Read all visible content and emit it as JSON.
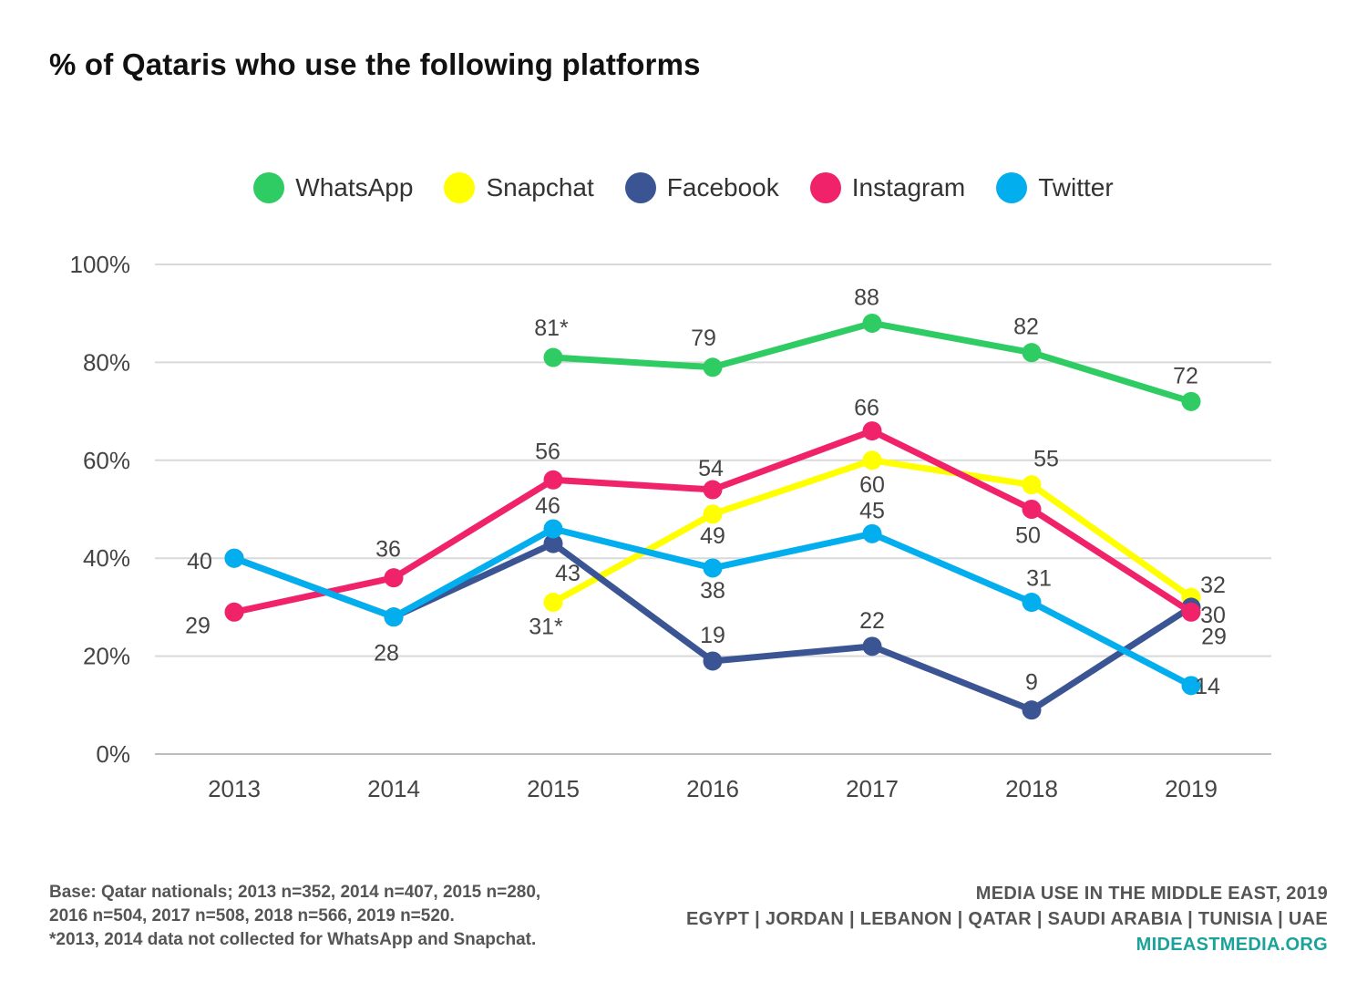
{
  "title": "% of Qataris who use the following platforms",
  "chart_data": {
    "type": "line",
    "title": "% of Qataris who use the following platforms",
    "x": [
      "2013",
      "2014",
      "2015",
      "2016",
      "2017",
      "2018",
      "2019"
    ],
    "ylim": [
      0,
      100
    ],
    "yticks": [
      0,
      20,
      40,
      60,
      80,
      100
    ],
    "ytick_labels": [
      "0%",
      "20%",
      "40%",
      "60%",
      "80%",
      "100%"
    ],
    "grid": true,
    "legend_position": "top",
    "series": [
      {
        "name": "WhatsApp",
        "color": "#2ecc63",
        "values": [
          null,
          null,
          81,
          79,
          88,
          82,
          72
        ],
        "labels": [
          null,
          null,
          "81*",
          "79",
          "88",
          "82",
          "72"
        ]
      },
      {
        "name": "Snapchat",
        "color": "#ffff00",
        "values": [
          null,
          null,
          31,
          49,
          60,
          55,
          32
        ],
        "labels": [
          null,
          null,
          "31*",
          "49",
          "60",
          "55",
          "32"
        ]
      },
      {
        "name": "Facebook",
        "color": "#3b5494",
        "values": [
          40,
          28,
          43,
          19,
          22,
          9,
          30
        ],
        "labels": [
          "40",
          "28",
          "43",
          "19",
          "22",
          "9",
          "30"
        ]
      },
      {
        "name": "Instagram",
        "color": "#f0226a",
        "values": [
          29,
          36,
          56,
          54,
          66,
          50,
          29
        ],
        "labels": [
          "29",
          "36",
          "56",
          "54",
          "66",
          "50",
          "29"
        ]
      },
      {
        "name": "Twitter",
        "color": "#03aeef",
        "values": [
          40,
          28,
          46,
          38,
          45,
          31,
          14
        ],
        "labels": [
          null,
          null,
          "46",
          "38",
          "45",
          "31",
          "14"
        ]
      }
    ]
  },
  "footnote": {
    "base": "Base: Qatar nationals; 2013 n=352, 2014 n=407, 2015 n=280, 2016 n=504, 2017 n=508, 2018 n=566, 2019 n=520.",
    "note": "*2013, 2014 data not collected for WhatsApp and Snapchat."
  },
  "source": {
    "line1": "MEDIA USE IN THE MIDDLE EAST, 2019",
    "line2": "EGYPT | JORDAN | LEBANON | QATAR | SAUDI ARABIA | TUNISIA | UAE",
    "link": "MIDEASTMEDIA.ORG"
  }
}
